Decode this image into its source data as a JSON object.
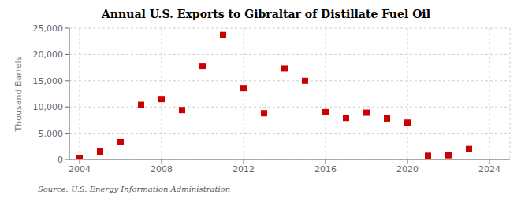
{
  "chart_data": {
    "type": "scatter",
    "title": "Annual U.S. Exports to Gibraltar of Distillate Fuel Oil",
    "ylabel": "Thousand Barrels",
    "source": "Source: U.S. Energy Information Administration",
    "x": [
      2004,
      2005,
      2006,
      2007,
      2008,
      2009,
      2010,
      2011,
      2012,
      2013,
      2014,
      2015,
      2016,
      2017,
      2018,
      2019,
      2020,
      2021,
      2022,
      2023
    ],
    "values": [
      300,
      1500,
      3300,
      10400,
      11500,
      9400,
      17800,
      23700,
      13600,
      8800,
      17300,
      15000,
      9000,
      7900,
      8900,
      7800,
      7000,
      700,
      800,
      2000
    ],
    "color": "#cc0000",
    "marker": "square",
    "xlim": [
      2003.5,
      2025
    ],
    "xticks": [
      2004,
      2008,
      2012,
      2016,
      2020,
      2024
    ],
    "ylim": [
      0,
      25000
    ],
    "yticks": [
      0,
      {
        "value": 5000,
        "label": "5,000"
      },
      {
        "value": 10000,
        "label": "10,000"
      },
      {
        "value": 15000,
        "label": "15,000"
      },
      {
        "value": 20000,
        "label": "20,000"
      },
      {
        "value": 25000,
        "label": "25,000"
      }
    ],
    "grid": true
  }
}
